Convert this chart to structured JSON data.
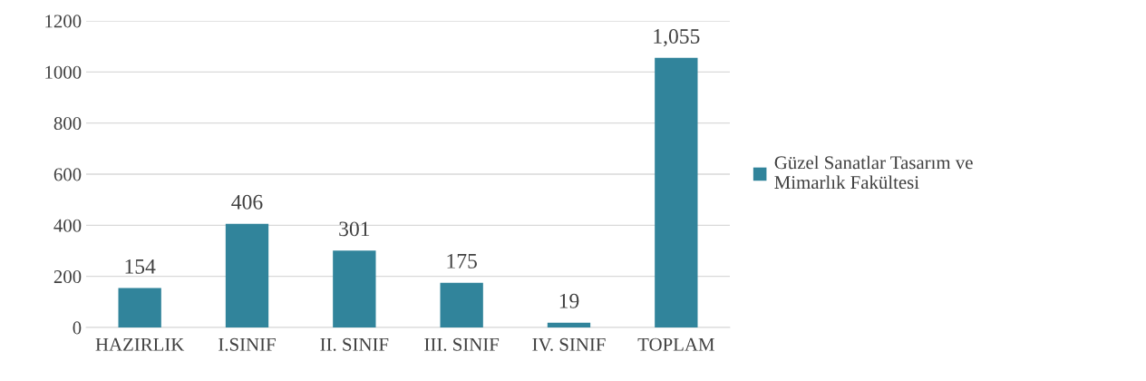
{
  "chart_data": {
    "type": "bar",
    "categories": [
      "HAZIRLIK",
      "I.SINIF",
      "II. SINIF",
      "III. SINIF",
      "IV. SINIF",
      "TOPLAM"
    ],
    "series": [
      {
        "name": "Güzel Sanatlar Tasarım ve Mimarlık Fakültesi",
        "color": "#31849b",
        "values": [
          154,
          406,
          301,
          175,
          19,
          1055
        ],
        "value_labels": [
          "154",
          "406",
          "301",
          "175",
          "19",
          "1,055"
        ]
      }
    ],
    "ylim": [
      0,
      1200
    ],
    "yticks": [
      0,
      200,
      400,
      600,
      800,
      1000,
      1200
    ],
    "grid": "y",
    "legend": "right"
  }
}
